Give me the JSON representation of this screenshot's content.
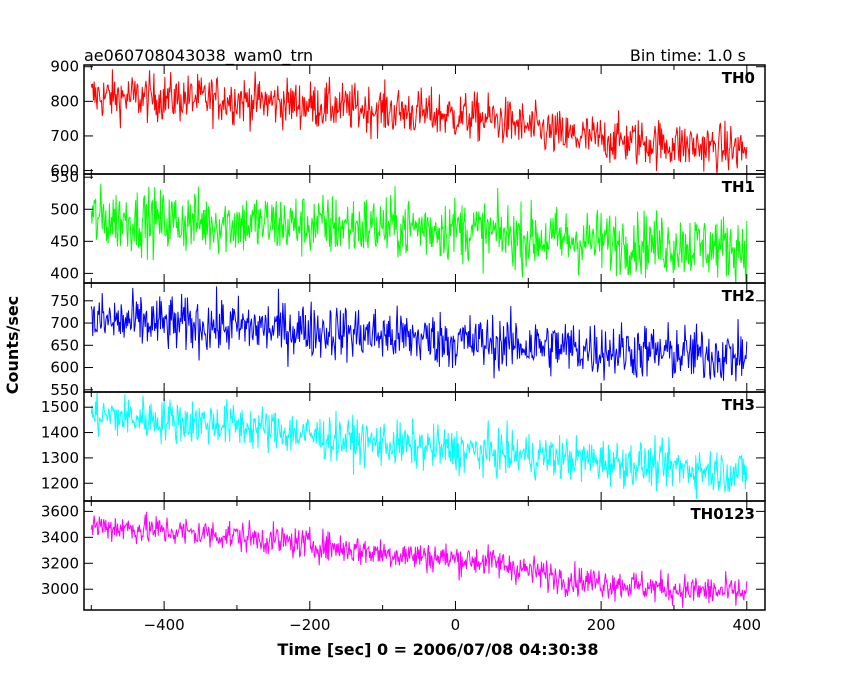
{
  "header": {
    "title": "ae060708043038_wam0_trn",
    "bin_time": "Bin time: 1.0 s"
  },
  "chart_data": {
    "type": "line",
    "xlabel": "Time [sec] 0 = 2006/07/08 04:30:38",
    "ylabel": "Counts/sec",
    "xlim": [
      -510,
      425
    ],
    "x_ticks": [
      -400,
      -200,
      0,
      200,
      400
    ],
    "x_range": [
      -500,
      400
    ],
    "bin_time_s": 1.0,
    "panels": [
      {
        "name": "TH0",
        "color": "#ff0000",
        "ylim": [
          590,
          905
        ],
        "y_ticks": [
          600,
          700,
          800,
          900
        ],
        "trend": [
          [
            -500,
            815
          ],
          [
            -300,
            805
          ],
          [
            -100,
            775
          ],
          [
            50,
            750
          ],
          [
            150,
            700
          ],
          [
            300,
            675
          ],
          [
            400,
            660
          ]
        ],
        "noise": 35
      },
      {
        "name": "TH1",
        "color": "#00ff00",
        "ylim": [
          385,
          555
        ],
        "y_ticks": [
          400,
          450,
          500,
          550
        ],
        "trend": [
          [
            -500,
            485
          ],
          [
            -200,
            475
          ],
          [
            0,
            470
          ],
          [
            100,
            455
          ],
          [
            400,
            440
          ]
        ],
        "noise": 25
      },
      {
        "name": "TH2",
        "color": "#0000ff",
        "ylim": [
          545,
          790
        ],
        "y_ticks": [
          550,
          600,
          650,
          700,
          750
        ],
        "trend": [
          [
            -500,
            705
          ],
          [
            -200,
            685
          ],
          [
            0,
            660
          ],
          [
            200,
            640
          ],
          [
            400,
            625
          ]
        ],
        "noise": 32
      },
      {
        "name": "TH3",
        "color": "#00ffff",
        "ylim": [
          1130,
          1560
        ],
        "y_ticks": [
          1200,
          1300,
          1400,
          1500
        ],
        "trend": [
          [
            -500,
            1470
          ],
          [
            -300,
            1430
          ],
          [
            -150,
            1370
          ],
          [
            0,
            1330
          ],
          [
            150,
            1300
          ],
          [
            400,
            1240
          ]
        ],
        "noise": 45
      },
      {
        "name": "TH0123",
        "color": "#ff00ff",
        "ylim": [
          2840,
          3680
        ],
        "y_ticks": [
          3000,
          3200,
          3400,
          3600
        ],
        "trend": [
          [
            -500,
            3490
          ],
          [
            -300,
            3410
          ],
          [
            -100,
            3280
          ],
          [
            50,
            3210
          ],
          [
            150,
            3080
          ],
          [
            300,
            3000
          ],
          [
            400,
            2970
          ]
        ],
        "noise": 60
      }
    ]
  }
}
